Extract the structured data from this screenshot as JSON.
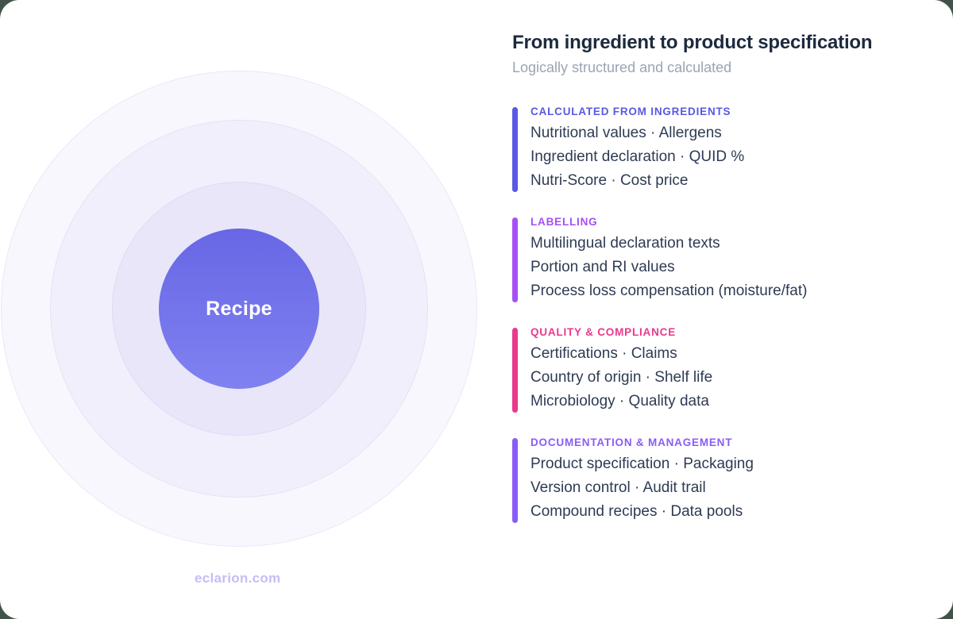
{
  "page": {
    "outside_background": "#42544a",
    "card_background": "#ffffff"
  },
  "header": {
    "title": "From ingredient to product specification",
    "subtitle": "Logically structured and calculated",
    "title_color": "#1d2a3d",
    "subtitle_color": "#9aa4b5"
  },
  "visual": {
    "center_label": "Recipe",
    "watermark": "eclarion.com",
    "center_gradient": [
      "#6867e5",
      "#8081f1"
    ],
    "ring_colors_inner_to_outer": [
      "#e9e6fa",
      "#f1effb",
      "#f8f7fd"
    ],
    "watermark_color": "#c6bdf6"
  },
  "sections": [
    {
      "heading": "CALCULATED FROM INGREDIENTS",
      "color": "#5859e4",
      "lines": [
        "Nutritional values · Allergens",
        "Ingredient declaration · QUID %",
        "Nutri-Score · Cost price"
      ]
    },
    {
      "heading": "LABELLING",
      "color": "#a650f3",
      "lines": [
        "Multilingual declaration texts",
        "Portion and RI values",
        "Process loss compensation (moisture/fat)"
      ]
    },
    {
      "heading": "QUALITY & COMPLIANCE",
      "color": "#e93a8c",
      "lines": [
        "Certifications · Claims",
        "Country of origin · Shelf life",
        "Microbiology · Quality data"
      ]
    },
    {
      "heading": "DOCUMENTATION & MANAGEMENT",
      "color": "#8a5cf6",
      "lines": [
        "Product specification · Packaging",
        "Version control · Audit trail",
        "Compound recipes · Data pools"
      ]
    }
  ]
}
